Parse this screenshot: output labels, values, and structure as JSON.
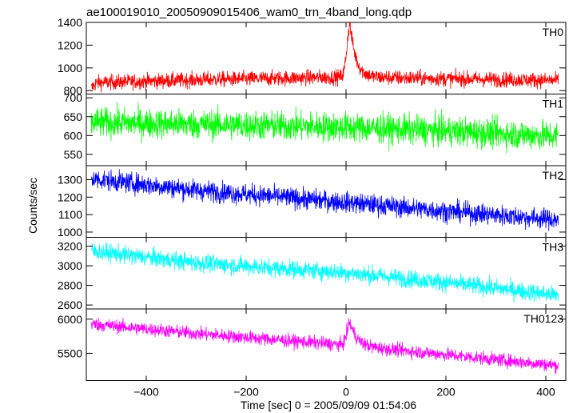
{
  "title": "ae100019010_20050909015406_wam0_trn_4band_long.qdp",
  "ylabel": "Counts/sec",
  "xlabel": "Time [sec] 0 = 2005/09/09 01:54:06",
  "chart_data": {
    "type": "line",
    "x_range": [
      -520,
      440
    ],
    "x_ticks": [
      -400,
      -200,
      0,
      200,
      400
    ],
    "time_start": -510,
    "time_end": 425,
    "time_step": 0.5,
    "panels": [
      {
        "name": "TH0",
        "color": "#ff0000",
        "ylim": [
          770,
          1400
        ],
        "yticks": [
          800,
          1000,
          1200,
          1400
        ],
        "baseline": [
          [
            -510,
            820
          ],
          [
            -500,
            870
          ],
          [
            -300,
            895
          ],
          [
            0,
            920
          ],
          [
            200,
            905
          ],
          [
            425,
            890
          ]
        ],
        "noise": 48,
        "peak": {
          "x": 8,
          "amplitude": 460,
          "rise": 6,
          "decay": 12
        }
      },
      {
        "name": "TH1",
        "color": "#00ff00",
        "ylim": [
          520,
          710
        ],
        "yticks": [
          550,
          600,
          650,
          700
        ],
        "baseline": [
          [
            -510,
            635
          ],
          [
            -300,
            630
          ],
          [
            0,
            622
          ],
          [
            200,
            612
          ],
          [
            425,
            598
          ]
        ],
        "noise": 28
      },
      {
        "name": "TH2",
        "color": "#0000ff",
        "ylim": [
          970,
          1380
        ],
        "yticks": [
          1000,
          1100,
          1200,
          1300
        ],
        "baseline": [
          [
            -510,
            1305
          ],
          [
            -300,
            1240
          ],
          [
            0,
            1170
          ],
          [
            200,
            1120
          ],
          [
            425,
            1070
          ]
        ],
        "noise": 42
      },
      {
        "name": "TH3",
        "color": "#00ffff",
        "ylim": [
          2560,
          3290
        ],
        "yticks": [
          2600,
          2800,
          3000,
          3200
        ],
        "baseline": [
          [
            -510,
            3150
          ],
          [
            -300,
            3030
          ],
          [
            0,
            2930
          ],
          [
            200,
            2830
          ],
          [
            425,
            2700
          ]
        ],
        "noise": 65
      },
      {
        "name": "TH0123",
        "color": "#ff00ff",
        "ylim": [
          5100,
          6150
        ],
        "yticks": [
          5500,
          6000
        ],
        "baseline": [
          [
            -510,
            5930
          ],
          [
            -300,
            5790
          ],
          [
            0,
            5620
          ],
          [
            200,
            5480
          ],
          [
            425,
            5320
          ]
        ],
        "noise": 70,
        "peak": {
          "x": 8,
          "amplitude": 330,
          "rise": 6,
          "decay": 14
        }
      }
    ]
  }
}
